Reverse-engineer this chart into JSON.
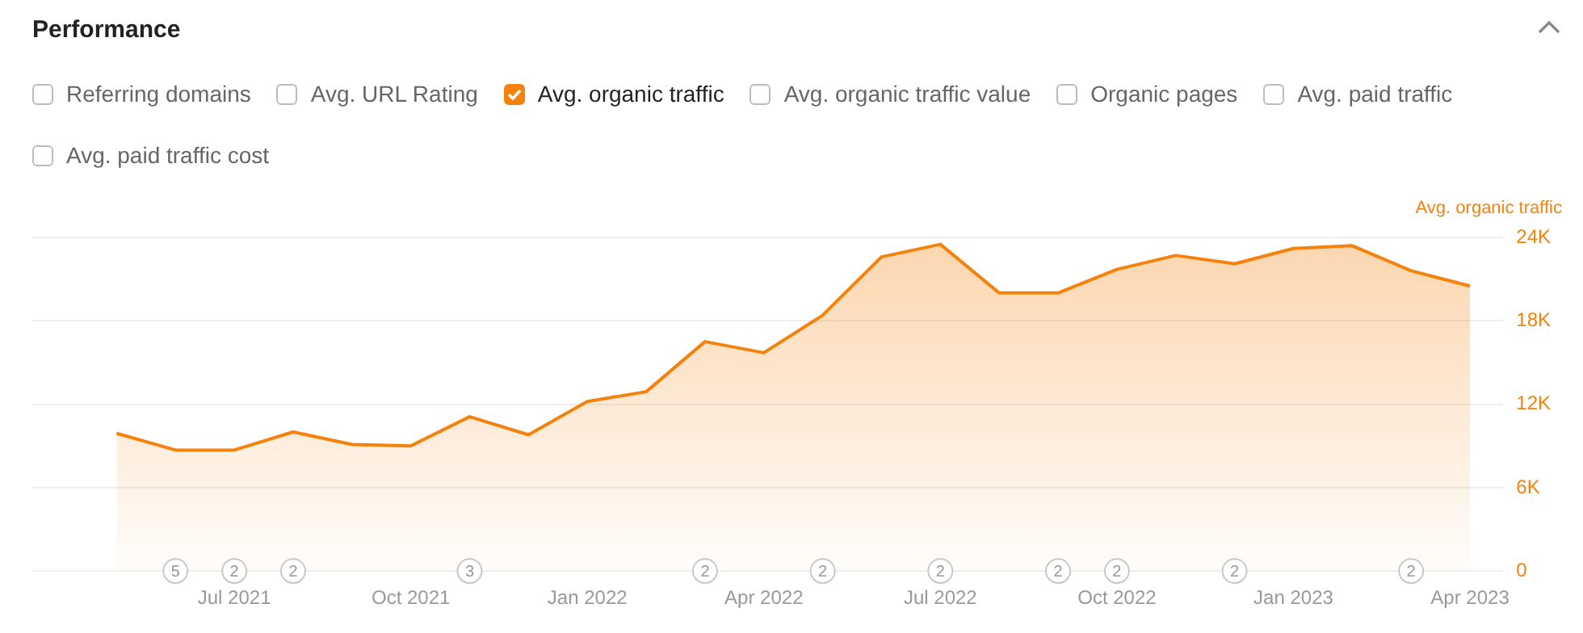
{
  "chart_data": {
    "type": "area",
    "title": "Performance",
    "ylabel": "Avg. organic traffic",
    "x": [
      "2021-05",
      "2021-06",
      "2021-07",
      "2021-08",
      "2021-09",
      "2021-10",
      "2021-11",
      "2021-12",
      "2022-01",
      "2022-02",
      "2022-03",
      "2022-04",
      "2022-05",
      "2022-06",
      "2022-07",
      "2022-08",
      "2022-09",
      "2022-10",
      "2022-11",
      "2022-12",
      "2023-01",
      "2023-02",
      "2023-03",
      "2023-04"
    ],
    "series": [
      {
        "name": "Avg. organic traffic",
        "color": "#f5820d",
        "values": [
          9900,
          8700,
          8700,
          10000,
          9100,
          9000,
          11100,
          9800,
          12200,
          12900,
          16500,
          15700,
          18400,
          22600,
          23500,
          20000,
          20000,
          21700,
          22700,
          22100,
          23200,
          23400,
          21600,
          20500
        ]
      }
    ],
    "xlim": [
      "2021-03-18",
      "2023-04-18"
    ],
    "xticks": [
      {
        "value": "2021-07",
        "label": "Jul 2021"
      },
      {
        "value": "2021-10",
        "label": "Oct 2021"
      },
      {
        "value": "2022-01",
        "label": "Jan 2022"
      },
      {
        "value": "2022-04",
        "label": "Apr 2022"
      },
      {
        "value": "2022-07",
        "label": "Jul 2022"
      },
      {
        "value": "2022-10",
        "label": "Oct 2022"
      },
      {
        "value": "2023-01",
        "label": "Jan 2023"
      },
      {
        "value": "2023-04",
        "label": "Apr 2023"
      }
    ],
    "ylim": [
      0,
      24000
    ],
    "yticks": [
      0,
      {
        "value": 6000,
        "label": "6K"
      },
      {
        "value": 12000,
        "label": "12K"
      },
      {
        "value": 18000,
        "label": "18K"
      },
      {
        "value": 24000,
        "label": "24K"
      }
    ],
    "grid": "y",
    "legend": "top left",
    "annotations": [
      "Referring domains",
      "Avg. URL Rating",
      "Avg. organic traffic value",
      "Organic pages",
      "Avg. paid traffic",
      "Avg. paid traffic cost",
      {
        "text": "5",
        "x": "2021-06",
        "y": 0
      },
      {
        "text": "2",
        "x": "2021-07",
        "y": 0
      },
      {
        "text": "2",
        "x": "2021-08",
        "y": 0
      },
      {
        "text": "3",
        "x": "2021-11",
        "y": 0
      },
      {
        "text": "2",
        "x": "2022-03",
        "y": 0
      },
      {
        "text": "2",
        "x": "2022-05",
        "y": 0
      },
      {
        "text": "2",
        "x": "2022-07",
        "y": 0
      },
      {
        "text": "2",
        "x": "2022-09",
        "y": 0
      },
      {
        "text": "2",
        "x": "2022-10",
        "y": 0
      },
      {
        "text": "2",
        "x": "2022-12",
        "y": 0
      },
      {
        "text": "2",
        "x": "2023-03",
        "y": 0
      }
    ]
  }
}
